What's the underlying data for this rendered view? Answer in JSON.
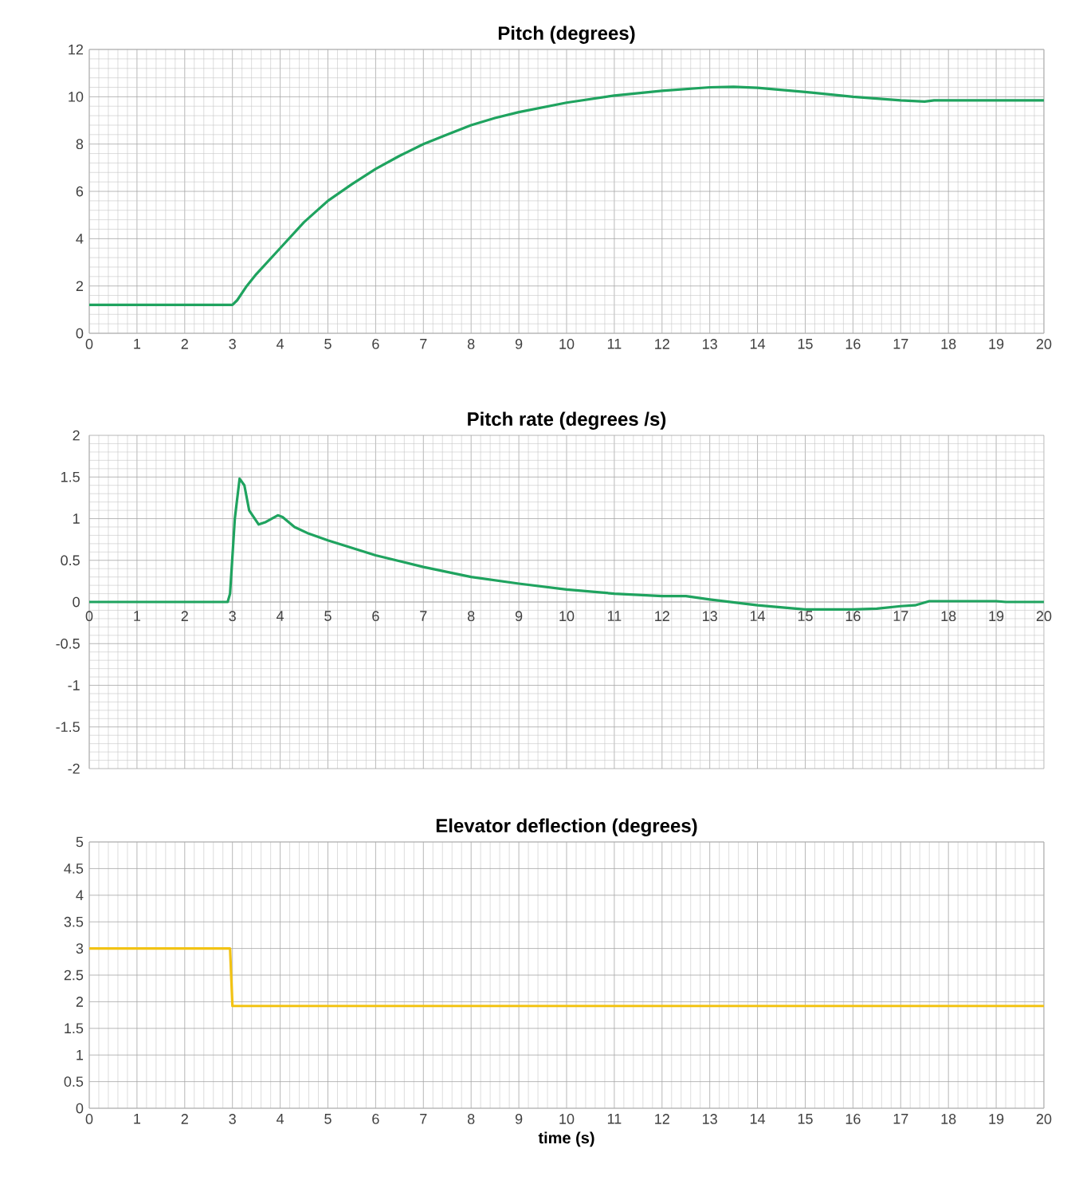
{
  "chart_data": [
    {
      "type": "line",
      "title": "Pitch (degrees)",
      "xlim": [
        0,
        20
      ],
      "ylim": [
        0,
        12
      ],
      "xticks": [
        0,
        1,
        2,
        3,
        4,
        5,
        6,
        7,
        8,
        9,
        10,
        11,
        12,
        13,
        14,
        15,
        16,
        17,
        18,
        19,
        20
      ],
      "yticks": [
        0,
        2,
        4,
        6,
        8,
        10,
        12
      ],
      "grid": true,
      "x": [
        0,
        3,
        3.1,
        3.3,
        3.5,
        4,
        4.5,
        5,
        5.5,
        6,
        6.5,
        7,
        7.5,
        8,
        8.5,
        9,
        9.5,
        10,
        11,
        12,
        13,
        13.5,
        14,
        15,
        16,
        17,
        17.5,
        17.7,
        18,
        19,
        20
      ],
      "series": [
        {
          "color": "#1fa35f",
          "values": [
            1.2,
            1.2,
            1.4,
            2.0,
            2.5,
            3.6,
            4.7,
            5.6,
            6.3,
            6.95,
            7.5,
            8.0,
            8.4,
            8.8,
            9.1,
            9.35,
            9.55,
            9.75,
            10.05,
            10.25,
            10.4,
            10.42,
            10.38,
            10.2,
            10.0,
            9.85,
            9.8,
            9.85,
            9.85,
            9.85,
            9.85
          ]
        }
      ]
    },
    {
      "type": "line",
      "title": "Pitch rate (degrees /s)",
      "xlim": [
        0,
        20
      ],
      "ylim": [
        -2,
        2
      ],
      "xticks": [
        0,
        1,
        2,
        3,
        4,
        5,
        6,
        7,
        8,
        9,
        10,
        11,
        12,
        13,
        14,
        15,
        16,
        17,
        18,
        19,
        20
      ],
      "yticks": [
        -2,
        -1.5,
        -1,
        -0.5,
        0,
        0.5,
        1,
        1.5,
        2
      ],
      "grid": true,
      "x": [
        0,
        2.9,
        2.95,
        3.05,
        3.15,
        3.25,
        3.35,
        3.55,
        3.7,
        3.95,
        4.05,
        4.3,
        4.6,
        5,
        6,
        7,
        8,
        9,
        10,
        11,
        12,
        12.5,
        13,
        14,
        15,
        16,
        16.5,
        17,
        17.3,
        17.6,
        18,
        19,
        19.2,
        20
      ],
      "series": [
        {
          "color": "#1fa35f",
          "values": [
            0,
            0,
            0.1,
            1.0,
            1.48,
            1.4,
            1.1,
            0.93,
            0.96,
            1.04,
            1.02,
            0.9,
            0.82,
            0.74,
            0.56,
            0.42,
            0.3,
            0.22,
            0.15,
            0.1,
            0.07,
            0.07,
            0.03,
            -0.04,
            -0.09,
            -0.09,
            -0.08,
            -0.05,
            -0.04,
            0.01,
            0.01,
            0.01,
            0,
            0
          ]
        }
      ]
    },
    {
      "type": "line",
      "title": "Elevator deflection (degrees)",
      "xlabel": "time (s)",
      "xlim": [
        0,
        20
      ],
      "ylim": [
        0,
        5
      ],
      "xticks": [
        0,
        1,
        2,
        3,
        4,
        5,
        6,
        7,
        8,
        9,
        10,
        11,
        12,
        13,
        14,
        15,
        16,
        17,
        18,
        19,
        20
      ],
      "yticks": [
        0,
        0.5,
        1,
        1.5,
        2,
        2.5,
        3,
        3.5,
        4,
        4.5,
        5
      ],
      "grid": true,
      "x": [
        0,
        2.95,
        3.0,
        20
      ],
      "series": [
        {
          "color": "#f2c314",
          "values": [
            3,
            3,
            1.92,
            1.92
          ]
        }
      ]
    }
  ]
}
